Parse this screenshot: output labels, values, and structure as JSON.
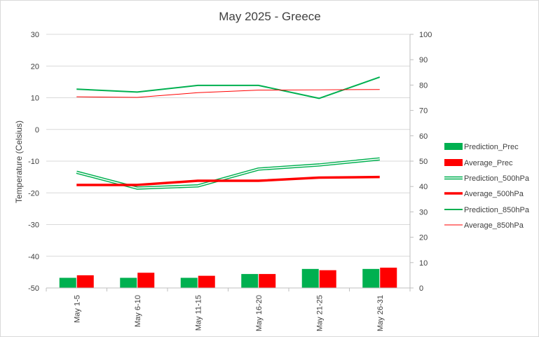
{
  "chart_data": {
    "type": "bar",
    "title": "May 2025 - Greece",
    "ylabel": "Temperature (Celsius)",
    "categories": [
      "May 1-5",
      "May 6-10",
      "May 11-15",
      "May 16-20",
      "May 21-25",
      "May 26-31"
    ],
    "ylim_left": [
      -50,
      30
    ],
    "yticks_left": [
      "30",
      "20",
      "10",
      "0",
      "-10",
      "-20",
      "-30",
      "-40",
      "-50"
    ],
    "ylim_right": [
      0,
      100
    ],
    "yticks_right": [
      "100",
      "90",
      "80",
      "70",
      "60",
      "50",
      "40",
      "30",
      "20",
      "10",
      "0"
    ],
    "grid": true,
    "legend_position": "right",
    "series": [
      {
        "name": "Prediction_Prec",
        "type": "bar",
        "axis": "right",
        "color": "#00b050",
        "values": [
          4,
          4,
          4,
          5.5,
          7.5,
          7.5
        ]
      },
      {
        "name": "Average_Prec",
        "type": "bar",
        "axis": "right",
        "color": "#ff0000",
        "values": [
          5,
          6,
          4.8,
          5.5,
          7,
          8
        ]
      },
      {
        "name": "Prediction_500hPa",
        "type": "line",
        "style": "double",
        "axis": "left",
        "color": "#00b050",
        "values": [
          -13.5,
          -18.5,
          -17.8,
          -12.5,
          -11.2,
          -9.3
        ]
      },
      {
        "name": "Average_500hPa",
        "type": "line",
        "style": "thick",
        "axis": "left",
        "color": "#ff0000",
        "values": [
          -17.5,
          -17.5,
          -16.2,
          -16.2,
          -15.2,
          -15
        ]
      },
      {
        "name": "Prediction_850hPa",
        "type": "line",
        "style": "medium",
        "axis": "left",
        "color": "#00b050",
        "values": [
          12.7,
          11.8,
          13.9,
          13.9,
          9.8,
          16.5
        ]
      },
      {
        "name": "Average_850hPa",
        "type": "line",
        "style": "thin",
        "axis": "left",
        "color": "#ff0000",
        "values": [
          10.3,
          10.1,
          11.6,
          12.4,
          12.5,
          12.6
        ]
      }
    ]
  }
}
